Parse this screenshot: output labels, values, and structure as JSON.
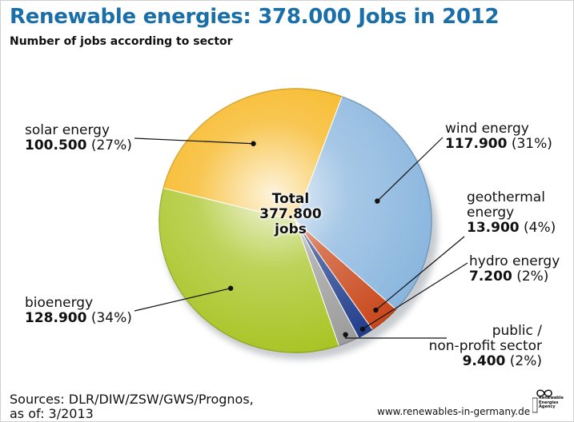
{
  "header": {
    "title": "Renewable energies: 378.000 Jobs in 2012",
    "subtitle": "Number of jobs according to sector"
  },
  "chart_data": {
    "type": "pie",
    "center_label": [
      "Total",
      "377.800",
      "jobs"
    ],
    "slices": [
      {
        "name": "wind energy",
        "name_lines": [
          "wind energy"
        ],
        "value": 117900,
        "value_label": "117.900",
        "percent": 31,
        "percent_label": "(31%)",
        "color": "#8ab6de"
      },
      {
        "name": "geothermal energy",
        "name_lines": [
          "geothermal",
          "energy"
        ],
        "value": 13900,
        "value_label": "13.900",
        "percent": 4,
        "percent_label": "(4%)",
        "color": "#c9491c"
      },
      {
        "name": "hydro energy",
        "name_lines": [
          "hydro energy"
        ],
        "value": 7200,
        "value_label": "7.200",
        "percent": 2,
        "percent_label": "(2%)",
        "color": "#233f8c"
      },
      {
        "name": "public / non-profit sector",
        "name_lines": [
          "public /",
          "non-profit sector"
        ],
        "value": 9400,
        "value_label": "9.400",
        "percent": 2,
        "percent_label": "(2%)",
        "color": "#9c9c9c"
      },
      {
        "name": "bioenergy",
        "name_lines": [
          "bioenergy"
        ],
        "value": 128900,
        "value_label": "128.900",
        "percent": 34,
        "percent_label": "(34%)",
        "color": "#a8c424"
      },
      {
        "name": "solar energy",
        "name_lines": [
          "solar energy"
        ],
        "value": 100500,
        "value_label": "100.500",
        "percent": 27,
        "percent_label": "(27%)",
        "color": "#f6b418"
      }
    ]
  },
  "footer": {
    "sources_line1": "Sources: DLR/DIW/ZSW/GWS/Prognos,",
    "sources_line2": "as of: 3/2013",
    "url": "www.renewables-in-germany.de",
    "logo_text": [
      "Renewable",
      "Energies",
      "Agency"
    ]
  }
}
